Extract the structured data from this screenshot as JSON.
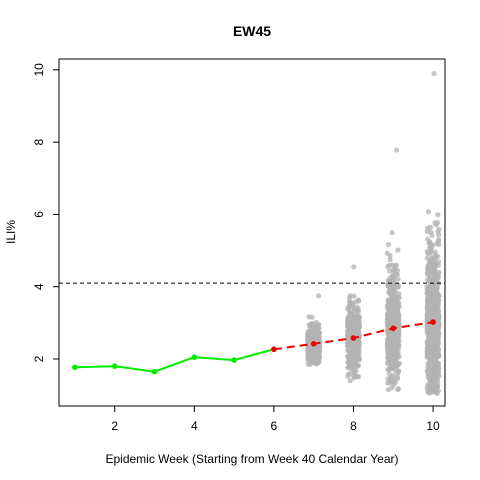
{
  "chart_data": {
    "type": "scatter",
    "title": "EW45",
    "xlabel": "Epidemic Week (Starting from Week 40 Calendar Year)",
    "ylabel": "ILI%",
    "xlim": [
      0.6,
      10.3
    ],
    "ylim": [
      0.7,
      10.3
    ],
    "x_ticks": [
      2,
      4,
      6,
      8,
      10
    ],
    "y_ticks": [
      2,
      4,
      6,
      8,
      10
    ],
    "threshold": 4.1,
    "series": [
      {
        "x": [
          1,
          2,
          3,
          4,
          5,
          6
        ],
        "y": [
          1.77,
          1.8,
          1.65,
          2.05,
          1.97,
          2.27
        ],
        "color": "#00ee00",
        "style": "solid"
      },
      {
        "x": [
          6,
          7,
          8,
          9,
          10
        ],
        "y": [
          2.27,
          2.42,
          2.58,
          2.85,
          3.02
        ],
        "color": "#ee0000",
        "style": "dashed"
      }
    ],
    "forecast_samples": [
      {
        "x": 7,
        "center": 2.42,
        "min": 1.85,
        "max": 3.75,
        "n": 350,
        "spread": 0.24,
        "color": "#b3b3b3"
      },
      {
        "x": 8,
        "center": 2.58,
        "min": 1.4,
        "max": 4.55,
        "n": 450,
        "spread": 0.42,
        "color": "#b3b3b3"
      },
      {
        "x": 9,
        "center": 2.85,
        "min": 1.15,
        "max": 7.78,
        "n": 600,
        "spread": 0.7,
        "color": "#b3b3b3"
      },
      {
        "x": 10,
        "center": 3.02,
        "min": 1.05,
        "max": 9.9,
        "n": 750,
        "spread": 1.05,
        "color": "#b3b3b3"
      }
    ]
  }
}
